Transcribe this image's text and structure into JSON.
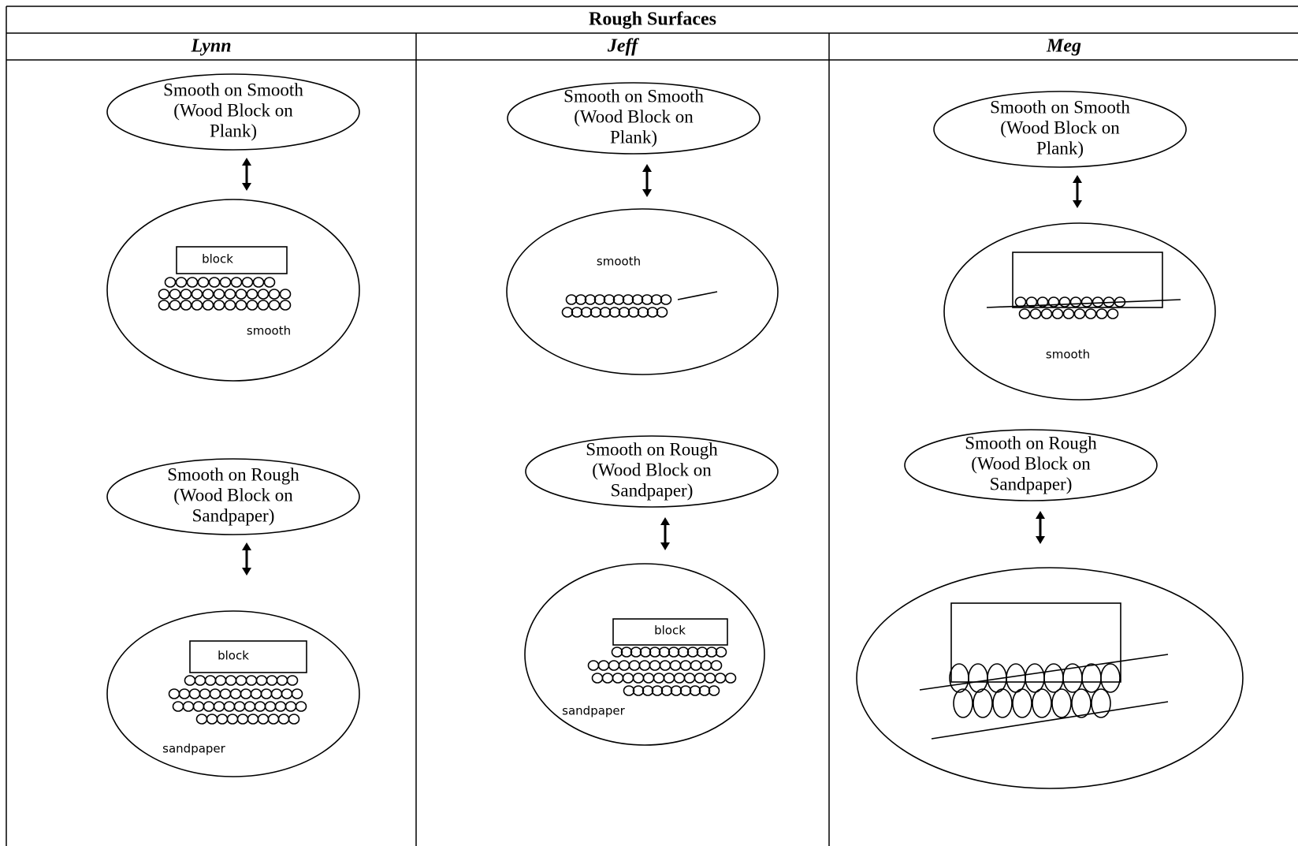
{
  "table": {
    "title": "Rough Surfaces",
    "columns": [
      {
        "name": "Lynn",
        "panels": [
          {
            "label": [
              "Smooth on Smooth",
              "(Wood Block on",
              "Plank)"
            ],
            "sketch_labels": [
              "block",
              "smooth"
            ]
          },
          {
            "label": [
              "Smooth on Rough",
              "(Wood Block on",
              "Sandpaper)"
            ],
            "sketch_labels": [
              "block",
              "sandpaper"
            ]
          }
        ]
      },
      {
        "name": "Jeff",
        "panels": [
          {
            "label": [
              "Smooth on Smooth",
              "(Wood Block on",
              "Plank)"
            ],
            "sketch_labels": [
              "smooth"
            ]
          },
          {
            "label": [
              "Smooth on Rough",
              "(Wood Block on",
              "Sandpaper)"
            ],
            "sketch_labels": [
              "block",
              "sandpaper"
            ]
          }
        ]
      },
      {
        "name": "Meg",
        "panels": [
          {
            "label": [
              "Smooth on Smooth",
              "(Wood Block on",
              "Plank)"
            ],
            "sketch_labels": [
              "smooth"
            ]
          },
          {
            "label": [
              "Smooth on Rough",
              "(Wood Block on",
              "Sandpaper)"
            ]
          }
        ]
      }
    ]
  }
}
